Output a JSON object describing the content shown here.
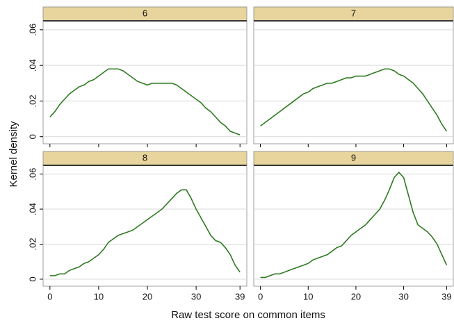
{
  "ylabel": "Kernel density",
  "xlabel": "Raw test score on common items",
  "chart_data": [
    {
      "type": "line",
      "title": "6",
      "color": "#2f7a22",
      "header_color": "#e7d59d",
      "grid": true,
      "x": [
        0,
        1,
        2,
        3,
        4,
        5,
        6,
        7,
        8,
        9,
        10,
        11,
        12,
        13,
        14,
        15,
        16,
        17,
        18,
        19,
        20,
        21,
        22,
        23,
        24,
        25,
        26,
        27,
        28,
        29,
        30,
        31,
        32,
        33,
        34,
        35,
        36,
        37,
        38,
        39
      ],
      "values": [
        0.011,
        0.014,
        0.018,
        0.021,
        0.024,
        0.026,
        0.028,
        0.029,
        0.031,
        0.032,
        0.034,
        0.036,
        0.038,
        0.038,
        0.038,
        0.037,
        0.035,
        0.033,
        0.031,
        0.03,
        0.029,
        0.03,
        0.03,
        0.03,
        0.03,
        0.03,
        0.029,
        0.027,
        0.025,
        0.023,
        0.021,
        0.019,
        0.016,
        0.014,
        0.011,
        0.008,
        0.006,
        0.003,
        0.002,
        0.001
      ],
      "xlim": [
        -1.4,
        40.4
      ],
      "xticks": [
        0,
        10,
        20,
        30,
        39
      ],
      "ylim": [
        -0.004,
        0.065
      ],
      "yticks": [
        0,
        {
          "value": 0.02,
          "label": ".02"
        },
        {
          "value": 0.04,
          "label": ".04"
        },
        {
          "value": 0.06,
          "label": ".06"
        }
      ]
    },
    {
      "type": "line",
      "title": "7",
      "color": "#2f7a22",
      "header_color": "#e7d59d",
      "grid": true,
      "x": [
        0,
        1,
        2,
        3,
        4,
        5,
        6,
        7,
        8,
        9,
        10,
        11,
        12,
        13,
        14,
        15,
        16,
        17,
        18,
        19,
        20,
        21,
        22,
        23,
        24,
        25,
        26,
        27,
        28,
        29,
        30,
        31,
        32,
        33,
        34,
        35,
        36,
        37,
        38,
        39
      ],
      "values": [
        0.006,
        0.008,
        0.01,
        0.012,
        0.014,
        0.016,
        0.018,
        0.02,
        0.022,
        0.024,
        0.025,
        0.027,
        0.028,
        0.029,
        0.03,
        0.03,
        0.031,
        0.032,
        0.033,
        0.033,
        0.034,
        0.034,
        0.034,
        0.035,
        0.036,
        0.037,
        0.038,
        0.038,
        0.037,
        0.035,
        0.034,
        0.032,
        0.03,
        0.027,
        0.024,
        0.02,
        0.016,
        0.012,
        0.007,
        0.003
      ],
      "xlim": [
        -1.4,
        40.4
      ],
      "xticks": [
        0,
        10,
        20,
        30,
        39
      ],
      "ylim": [
        -0.004,
        0.065
      ],
      "yticks": [
        0,
        {
          "value": 0.02,
          "label": ".02"
        },
        {
          "value": 0.04,
          "label": ".04"
        },
        {
          "value": 0.06,
          "label": ".06"
        }
      ]
    },
    {
      "type": "line",
      "title": "8",
      "color": "#2f7a22",
      "header_color": "#e7d59d",
      "grid": true,
      "x": [
        0,
        1,
        2,
        3,
        4,
        5,
        6,
        7,
        8,
        9,
        10,
        11,
        12,
        13,
        14,
        15,
        16,
        17,
        18,
        19,
        20,
        21,
        22,
        23,
        24,
        25,
        26,
        27,
        28,
        29,
        30,
        31,
        32,
        33,
        34,
        35,
        36,
        37,
        38,
        39
      ],
      "values": [
        0.002,
        0.002,
        0.003,
        0.003,
        0.005,
        0.006,
        0.007,
        0.009,
        0.01,
        0.012,
        0.014,
        0.017,
        0.021,
        0.023,
        0.025,
        0.026,
        0.027,
        0.028,
        0.03,
        0.032,
        0.034,
        0.036,
        0.038,
        0.04,
        0.043,
        0.046,
        0.049,
        0.051,
        0.051,
        0.046,
        0.04,
        0.035,
        0.03,
        0.025,
        0.022,
        0.021,
        0.018,
        0.014,
        0.008,
        0.004
      ],
      "xlim": [
        -1.4,
        40.4
      ],
      "xticks": [
        0,
        10,
        20,
        30,
        39
      ],
      "ylim": [
        -0.004,
        0.065
      ],
      "yticks": [
        0,
        {
          "value": 0.02,
          "label": ".02"
        },
        {
          "value": 0.04,
          "label": ".04"
        },
        {
          "value": 0.06,
          "label": ".06"
        }
      ]
    },
    {
      "type": "line",
      "title": "9",
      "color": "#2f7a22",
      "header_color": "#e7d59d",
      "grid": true,
      "x": [
        0,
        1,
        2,
        3,
        4,
        5,
        6,
        7,
        8,
        9,
        10,
        11,
        12,
        13,
        14,
        15,
        16,
        17,
        18,
        19,
        20,
        21,
        22,
        23,
        24,
        25,
        26,
        27,
        28,
        29,
        30,
        31,
        32,
        33,
        34,
        35,
        36,
        37,
        38,
        39
      ],
      "values": [
        0.001,
        0.001,
        0.002,
        0.003,
        0.003,
        0.004,
        0.005,
        0.006,
        0.007,
        0.008,
        0.009,
        0.011,
        0.012,
        0.013,
        0.014,
        0.016,
        0.018,
        0.019,
        0.022,
        0.025,
        0.027,
        0.029,
        0.031,
        0.034,
        0.037,
        0.04,
        0.045,
        0.051,
        0.058,
        0.061,
        0.058,
        0.048,
        0.038,
        0.031,
        0.029,
        0.027,
        0.024,
        0.02,
        0.014,
        0.008
      ],
      "xlim": [
        -1.4,
        40.4
      ],
      "xticks": [
        0,
        10,
        20,
        30,
        39
      ],
      "ylim": [
        -0.004,
        0.065
      ],
      "yticks": [
        0,
        {
          "value": 0.02,
          "label": ".02"
        },
        {
          "value": 0.04,
          "label": ".04"
        },
        {
          "value": 0.06,
          "label": ".06"
        }
      ]
    }
  ]
}
